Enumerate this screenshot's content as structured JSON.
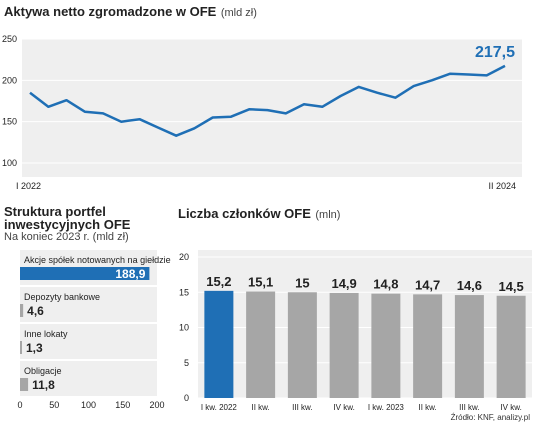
{
  "top": {
    "title": "Aktywa netto zgromadzone w OFE",
    "unit": "(mld zł)"
  },
  "left": {
    "title_line1": "Struktura portfel",
    "title_line2": "inwestycyjnych OFE",
    "subtitle": "Na koniec 2023 r. (mld zł)"
  },
  "right": {
    "title": "Liczba członków OFE",
    "unit": "(mln)"
  },
  "source": "Źródło: KNF, analizy.pl",
  "colors": {
    "accent": "#1f6fb5",
    "line": "#1f6fb5",
    "bar_grey": "#a6a6a6",
    "panel_bg": "#efefef"
  },
  "chart_data": [
    {
      "type": "line",
      "title": "Aktywa netto zgromadzone w OFE (mld zł)",
      "ylim": [
        100,
        250
      ],
      "yticks": [
        100,
        150,
        200,
        250
      ],
      "x_start_label": "I 2022",
      "x_end_label": "II 2024",
      "last_value_label": "217,5",
      "values": [
        185,
        168,
        176,
        162,
        160,
        150,
        153,
        143,
        133,
        142,
        155,
        156,
        165,
        164,
        160,
        171,
        168,
        181,
        192,
        185,
        179,
        193,
        200,
        208,
        207,
        206,
        217.5
      ]
    },
    {
      "type": "bar",
      "orientation": "horizontal",
      "title": "Struktura portfel inwestycyjnych OFE",
      "subtitle": "Na koniec 2023 r. (mld zł)",
      "xlim": [
        0,
        200
      ],
      "xticks": [
        0,
        50,
        100,
        150,
        200
      ],
      "categories": [
        "Akcje spółek notowanych na giełdzie",
        "Depozyty bankowe",
        "Inne lokaty",
        "Obligacje"
      ],
      "values": [
        188.9,
        4.6,
        1.3,
        11.8
      ],
      "value_labels": [
        "188,9",
        "4,6",
        "1,3",
        "11,8"
      ]
    },
    {
      "type": "bar",
      "title": "Liczba członków OFE (mln)",
      "ylim": [
        0,
        20
      ],
      "yticks": [
        0,
        5,
        10,
        15,
        20
      ],
      "categories": [
        "I kw. 2022",
        "II kw.",
        "III kw.",
        "IV kw.",
        "I kw. 2023",
        "II kw.",
        "III kw.",
        "IV kw."
      ],
      "values": [
        15.2,
        15.1,
        15,
        14.9,
        14.8,
        14.7,
        14.6,
        14.5
      ],
      "value_labels": [
        "15,2",
        "15,1",
        "15",
        "14,9",
        "14,8",
        "14,7",
        "14,6",
        "14,5"
      ]
    }
  ]
}
